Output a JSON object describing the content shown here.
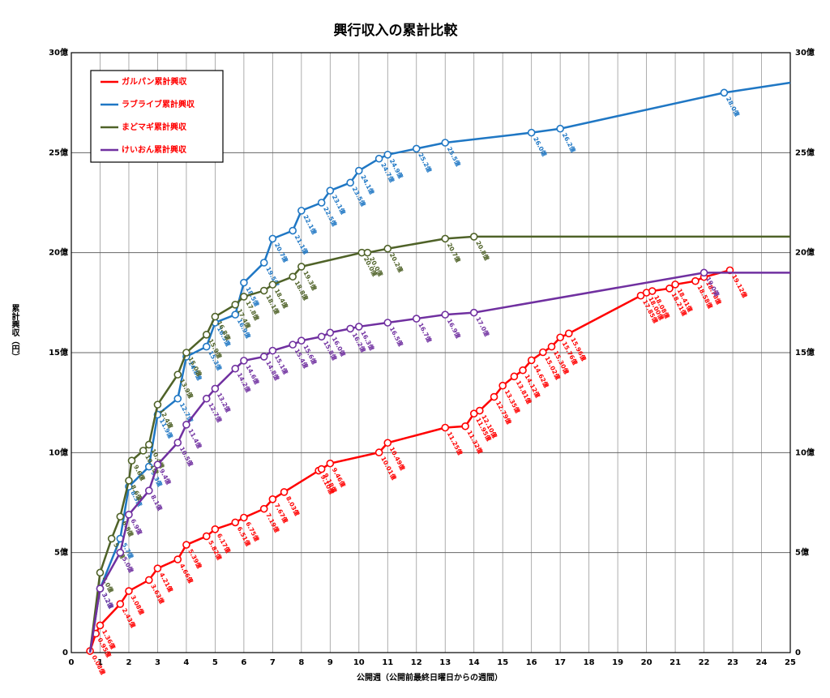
{
  "chart_data": {
    "type": "line",
    "title": "興行収入の累計比較",
    "x_label": "公開週（公開前最終日曜日からの週間）",
    "y_label": "累計興収（円）",
    "xlim": [
      0,
      25
    ],
    "xticks": [
      0,
      1,
      2,
      3,
      4,
      5,
      6,
      7,
      8,
      9,
      10,
      11,
      12,
      13,
      14,
      15,
      16,
      17,
      18,
      19,
      20,
      21,
      22,
      23,
      24,
      25
    ],
    "ylim": [
      0,
      30
    ],
    "yticks": [
      {
        "value": 0,
        "label": "0"
      },
      {
        "value": 5,
        "label": "5億"
      },
      {
        "value": 10,
        "label": "10億"
      },
      {
        "value": 15,
        "label": "15億"
      },
      {
        "value": 20,
        "label": "20億"
      },
      {
        "value": 25,
        "label": "25億"
      },
      {
        "value": 30,
        "label": "30億"
      }
    ],
    "grid": true,
    "legend": "upper left",
    "series": [
      {
        "name": "ガルパン累計興収",
        "color": "#ff0000",
        "x": [
          0.65,
          0.85,
          1.0,
          1.7,
          2.0,
          2.7,
          3.0,
          3.7,
          4.0,
          4.7,
          5.0,
          5.7,
          6.0,
          6.7,
          7.0,
          7.4,
          8.6,
          8.7,
          9.0,
          10.7,
          11.0,
          13.0,
          13.7,
          14.0,
          14.2,
          14.7,
          15.0,
          15.4,
          15.7,
          16.0,
          16.4,
          16.7,
          17.0,
          17.3,
          19.8,
          20.0,
          20.2,
          20.8,
          21.0,
          21.7,
          22.0,
          22.9
        ],
        "values": [
          0.08,
          0.95,
          1.36,
          2.43,
          3.08,
          3.63,
          4.21,
          4.66,
          5.39,
          5.82,
          6.17,
          6.51,
          6.75,
          7.19,
          7.67,
          8.03,
          9.1,
          9.18,
          9.46,
          10.01,
          10.49,
          11.25,
          11.32,
          11.95,
          12.1,
          12.79,
          13.35,
          13.81,
          14.12,
          14.62,
          15.02,
          15.3,
          15.76,
          15.96,
          17.85,
          18.0,
          18.08,
          18.21,
          18.41,
          18.58,
          18.78,
          19.12
        ],
        "value_labels": [
          "0.08億",
          "0.95億",
          "1.36億",
          "2.43億",
          "3.08億",
          "3.63億",
          "4.21億",
          "4.66億",
          "5.39億",
          "5.82億",
          "6.17億",
          "6.51億",
          "6.75億",
          "7.19億",
          "7.67億",
          "8.03億",
          "9.10億",
          "9.18億",
          "9.46億",
          "10.01億",
          "10.49億",
          "11.25億",
          "11.32億",
          "11.95億",
          "12.10億",
          "12.79億",
          "13.35億",
          "13.81億",
          "14.12億",
          "14.62億",
          "15.02億",
          "15.30億",
          "15.76億",
          "15.96億",
          "17.85億",
          "18.00億",
          "18.08億",
          "18.21億",
          "18.41億",
          "18.58億",
          "18.78億",
          "19.12億"
        ]
      },
      {
        "name": "ラブライブ累計興収",
        "color": "#1f77c4",
        "x": [
          0.65,
          1.0,
          1.7,
          2.0,
          2.7,
          3.0,
          3.7,
          4.0,
          4.7,
          5.0,
          5.7,
          6.0,
          6.7,
          7.0,
          7.7,
          8.0,
          8.7,
          9.0,
          9.7,
          10.0,
          10.7,
          11.0,
          12.0,
          13.0,
          16.0,
          17.0,
          22.7,
          25
        ],
        "values": [
          0,
          3.2,
          5.7,
          8.3,
          9.3,
          11.9,
          12.7,
          14.8,
          15.3,
          16.5,
          16.9,
          18.5,
          19.5,
          20.7,
          21.1,
          22.1,
          22.5,
          23.1,
          23.5,
          24.1,
          24.7,
          24.9,
          25.2,
          25.5,
          26.0,
          26.2,
          28.0,
          28.5
        ],
        "value_labels": [
          null,
          "3.2億",
          "5.7億",
          "8.3億",
          "9.3億",
          "11.9億",
          "12.7億",
          "14.8億",
          "15.3億",
          "16.5億",
          "16.9億",
          "18.5億",
          "19.5億",
          "20.7億",
          "21.1億",
          "22.1億",
          "22.5億",
          "23.1億",
          "23.5億",
          "24.1億",
          "24.7億",
          "24.9億",
          "25.2億",
          "25.5億",
          "26.0億",
          "26.2億",
          "28.0億",
          null
        ]
      },
      {
        "name": "まどマギ累計興収",
        "color": "#4f6228",
        "x": [
          0.65,
          1.0,
          1.4,
          1.7,
          2.0,
          2.1,
          2.5,
          2.7,
          3.0,
          3.7,
          4.0,
          4.7,
          5.0,
          5.7,
          6.0,
          6.7,
          7.0,
          7.7,
          8.0,
          10.1,
          10.3,
          11.0,
          13.0,
          14.0,
          25
        ],
        "values": [
          0,
          4.0,
          5.7,
          6.8,
          8.6,
          9.6,
          10.1,
          10.4,
          12.4,
          13.9,
          15.0,
          15.9,
          16.8,
          17.4,
          17.8,
          18.1,
          18.4,
          18.8,
          19.3,
          20.0,
          20.0,
          20.2,
          20.7,
          20.8,
          20.8
        ],
        "value_labels": [
          null,
          "4.0億",
          "5.7億",
          "6.8億",
          "8.6億",
          "9.6億",
          "10.1億",
          "10.4億",
          "12.4億",
          "13.9億",
          "15.0億",
          "15.9億",
          "16.8億",
          "17.4億",
          "17.8億",
          "18.1億",
          "18.4億",
          "18.8億",
          "19.3億",
          "20.0億",
          "20.0億",
          "20.2億",
          "20.7億",
          "20.8億",
          null
        ]
      },
      {
        "name": "けいおん累計興収",
        "color": "#7030a0",
        "x": [
          0.65,
          1.0,
          1.7,
          2.0,
          2.7,
          3.0,
          3.7,
          4.0,
          4.7,
          5.0,
          5.7,
          6.0,
          6.7,
          7.0,
          7.7,
          8.0,
          8.7,
          9.0,
          9.7,
          10.0,
          11.0,
          12.0,
          13.0,
          14.0,
          22.0,
          25
        ],
        "values": [
          0,
          3.2,
          5.0,
          6.9,
          8.1,
          9.4,
          10.5,
          11.4,
          12.7,
          13.2,
          14.2,
          14.6,
          14.8,
          15.1,
          15.4,
          15.6,
          15.8,
          16.0,
          16.2,
          16.3,
          16.5,
          16.7,
          16.9,
          17.0,
          19.0,
          19.0
        ],
        "value_labels": [
          null,
          "3.2億",
          "5.0億",
          "6.9億",
          "8.1億",
          "9.4億",
          "10.5億",
          "11.4億",
          "12.7億",
          "13.2億",
          "14.2億",
          "14.6億",
          "14.8億",
          "15.1億",
          "15.4億",
          "15.6億",
          "15.8億",
          "16.0億",
          "16.2億",
          "16.3億",
          "16.5億",
          "16.7億",
          "16.9億",
          "17.0億",
          "19.0億",
          null
        ]
      }
    ]
  }
}
